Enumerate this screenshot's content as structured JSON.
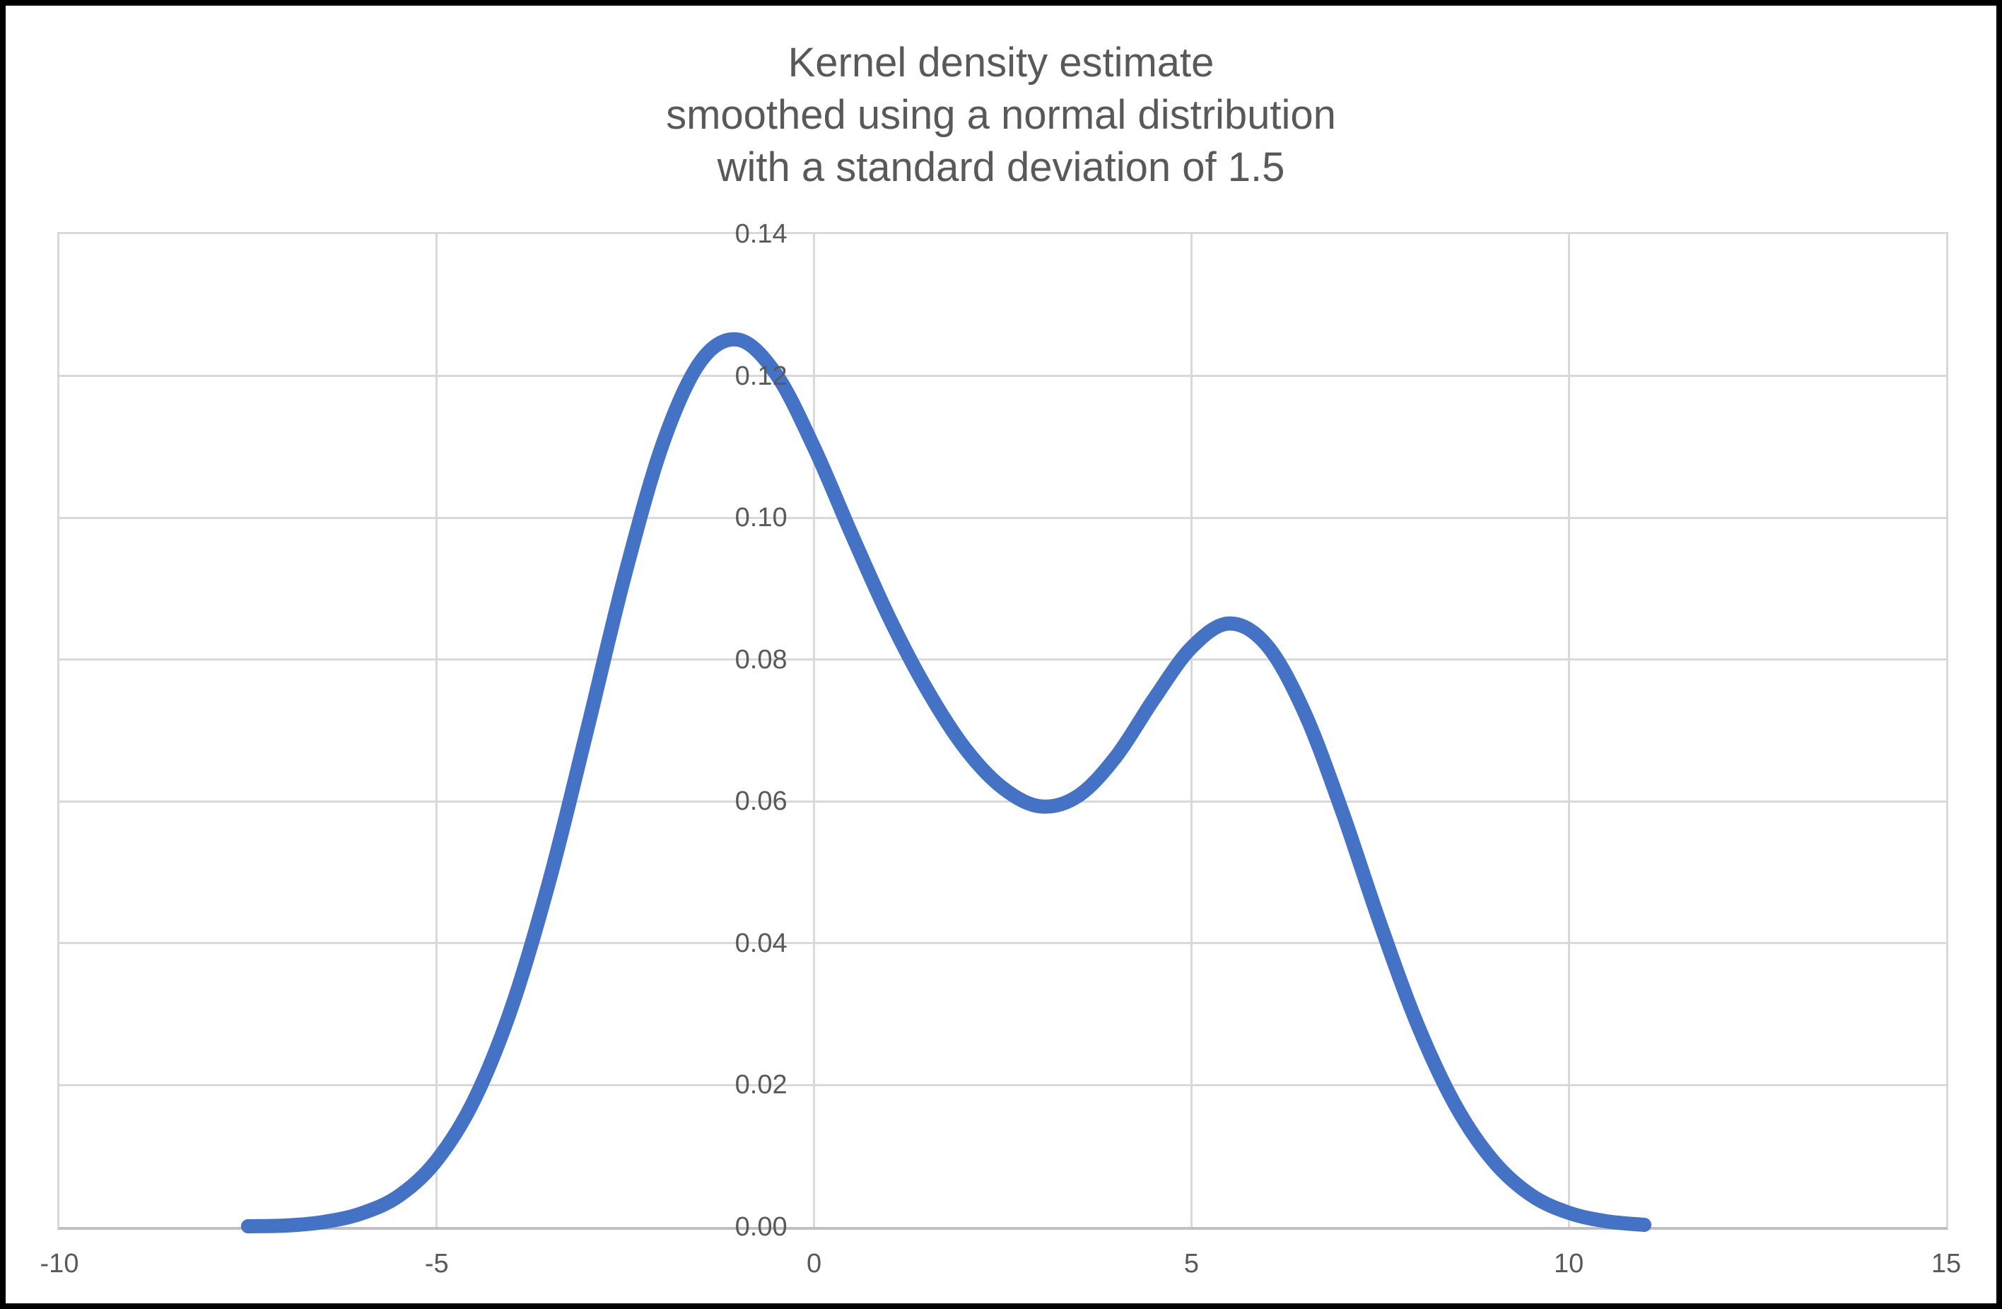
{
  "chart_data": {
    "type": "line",
    "title": "Kernel density estimate smoothed using a normal distribution with a standard deviation of 1.5",
    "title_lines": [
      "Kernel density estimate",
      "smoothed using a normal distribution",
      "with a standard deviation of 1.5"
    ],
    "xlabel": "",
    "ylabel": "",
    "xlim": [
      -10,
      15
    ],
    "ylim": [
      0,
      0.14
    ],
    "grid": true,
    "legend": false,
    "x_ticks": [
      {
        "value": -10,
        "label": "-10"
      },
      {
        "value": -5,
        "label": "-5"
      },
      {
        "value": 0,
        "label": "0"
      },
      {
        "value": 5,
        "label": "5"
      },
      {
        "value": 10,
        "label": "10"
      },
      {
        "value": 15,
        "label": "15"
      }
    ],
    "y_ticks": [
      {
        "value": 0.0,
        "label": "0.00"
      },
      {
        "value": 0.02,
        "label": "0.02"
      },
      {
        "value": 0.04,
        "label": "0.04"
      },
      {
        "value": 0.06,
        "label": "0.06"
      },
      {
        "value": 0.08,
        "label": "0.08"
      },
      {
        "value": 0.1,
        "label": "0.10"
      },
      {
        "value": 0.12,
        "label": "0.12"
      },
      {
        "value": 0.14,
        "label": "0.14"
      }
    ],
    "series": [
      {
        "name": "Kernel density estimate",
        "color": "#4472C4",
        "line_width": 20,
        "points": [
          [
            -7.5,
            0.0001
          ],
          [
            -7.0,
            0.0002
          ],
          [
            -6.5,
            0.0007
          ],
          [
            -6.0,
            0.0019
          ],
          [
            -5.5,
            0.0044
          ],
          [
            -5.0,
            0.0094
          ],
          [
            -4.5,
            0.018
          ],
          [
            -4.0,
            0.0312
          ],
          [
            -3.5,
            0.0491
          ],
          [
            -3.0,
            0.0704
          ],
          [
            -2.5,
            0.0922
          ],
          [
            -2.0,
            0.1106
          ],
          [
            -1.5,
            0.1221
          ],
          [
            -1.0,
            0.1251
          ],
          [
            -0.5,
            0.1202
          ],
          [
            0.0,
            0.1099
          ],
          [
            0.5,
            0.0976
          ],
          [
            1.0,
            0.0858
          ],
          [
            1.5,
            0.0757
          ],
          [
            2.0,
            0.0675
          ],
          [
            2.5,
            0.0619
          ],
          [
            3.0,
            0.0593
          ],
          [
            3.5,
            0.0608
          ],
          [
            4.0,
            0.0663
          ],
          [
            4.5,
            0.0744
          ],
          [
            5.0,
            0.0817
          ],
          [
            5.5,
            0.0851
          ],
          [
            6.0,
            0.082
          ],
          [
            6.5,
            0.0725
          ],
          [
            7.0,
            0.0585
          ],
          [
            7.5,
            0.0428
          ],
          [
            8.0,
            0.0284
          ],
          [
            8.5,
            0.0171
          ],
          [
            9.0,
            0.0093
          ],
          [
            9.5,
            0.0045
          ],
          [
            10.0,
            0.002
          ],
          [
            10.5,
            0.0008
          ],
          [
            11.0,
            0.0003
          ]
        ]
      }
    ]
  },
  "colors": {
    "title_text": "#595959",
    "axis_text": "#595959",
    "gridline": "#D9D9D9",
    "axis_line": "#BFBFBF",
    "curve": "#4472C4",
    "background": "#FFFFFF",
    "frame": "#000000"
  }
}
